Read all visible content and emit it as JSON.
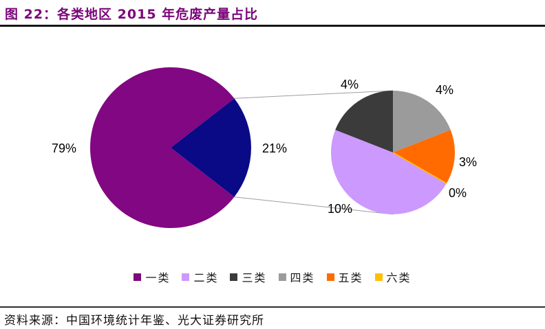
{
  "header": {
    "title": "图 22：各类地区 2015 年危废产量占比"
  },
  "footer": {
    "source": "资料来源：中国环境统计年鉴、光大证券研究所"
  },
  "chart_data": {
    "type": "pie",
    "subtype": "pie-of-pie",
    "title": "各类地区 2015 年危废产量占比",
    "unit": "%",
    "categories": [
      "一类",
      "二类",
      "三类",
      "四类",
      "五类",
      "六类"
    ],
    "values": [
      79,
      10,
      4,
      4,
      3,
      0
    ],
    "legend_position": "bottom",
    "legend": [
      {
        "label": "一类",
        "color": "#7B0A7B"
      },
      {
        "label": "二类",
        "color": "#CC99FF"
      },
      {
        "label": "三类",
        "color": "#3B3B3B"
      },
      {
        "label": "四类",
        "color": "#9B9B9B"
      },
      {
        "label": "五类",
        "color": "#FF6B00"
      },
      {
        "label": "六类",
        "color": "#FFC000"
      }
    ],
    "main_pie": {
      "start_angle": 52.2,
      "slices": [
        {
          "name": "other",
          "value": 21,
          "label": "21%",
          "color": "#0A0A87"
        },
        {
          "name": "c1",
          "value": 79,
          "label": "79%",
          "color": "#820782"
        }
      ]
    },
    "secondary_pie": {
      "start_angle": 0,
      "slices": [
        {
          "name": "c4",
          "value": 4,
          "label": "4%",
          "color": "#9B9B9B"
        },
        {
          "name": "c5",
          "value": 3,
          "label": "3%",
          "color": "#FF6B00"
        },
        {
          "name": "c6",
          "value": 0,
          "label": "0%",
          "color": "#FFC000"
        },
        {
          "name": "c2",
          "value": 10,
          "label": "10%",
          "color": "#CC99FF"
        },
        {
          "name": "c3",
          "value": 4,
          "label": "4%",
          "color": "#3B3B3B"
        }
      ]
    },
    "connector_color": "#9d9d9d"
  }
}
